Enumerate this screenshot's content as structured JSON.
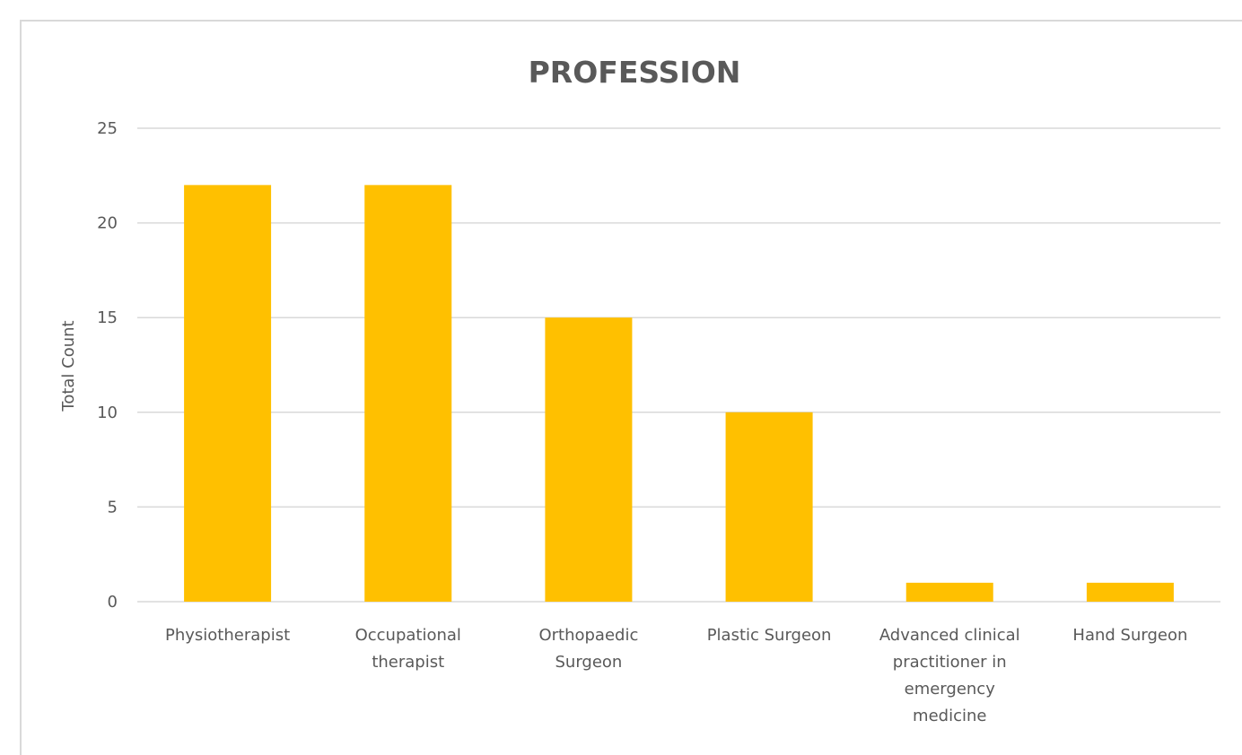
{
  "chart_data": {
    "type": "bar",
    "title": "PROFESSION",
    "xlabel": "",
    "ylabel": "Total Count",
    "categories": [
      [
        "Physiotherapist"
      ],
      [
        "Occupational",
        "therapist"
      ],
      [
        "Orthopaedic",
        "Surgeon"
      ],
      [
        "Plastic Surgeon"
      ],
      [
        "Advanced clinical",
        "practitioner in",
        "emergency",
        "medicine"
      ],
      [
        "Hand Surgeon"
      ]
    ],
    "values": [
      22,
      22,
      15,
      10,
      1,
      1
    ],
    "ylim": [
      0,
      25
    ],
    "yticks": [
      0,
      5,
      10,
      15,
      20,
      25
    ],
    "grid": true,
    "legend": "none",
    "colors": {
      "bar": "#FFC000",
      "grid": "#d9d9d9",
      "text": "#595959"
    }
  }
}
